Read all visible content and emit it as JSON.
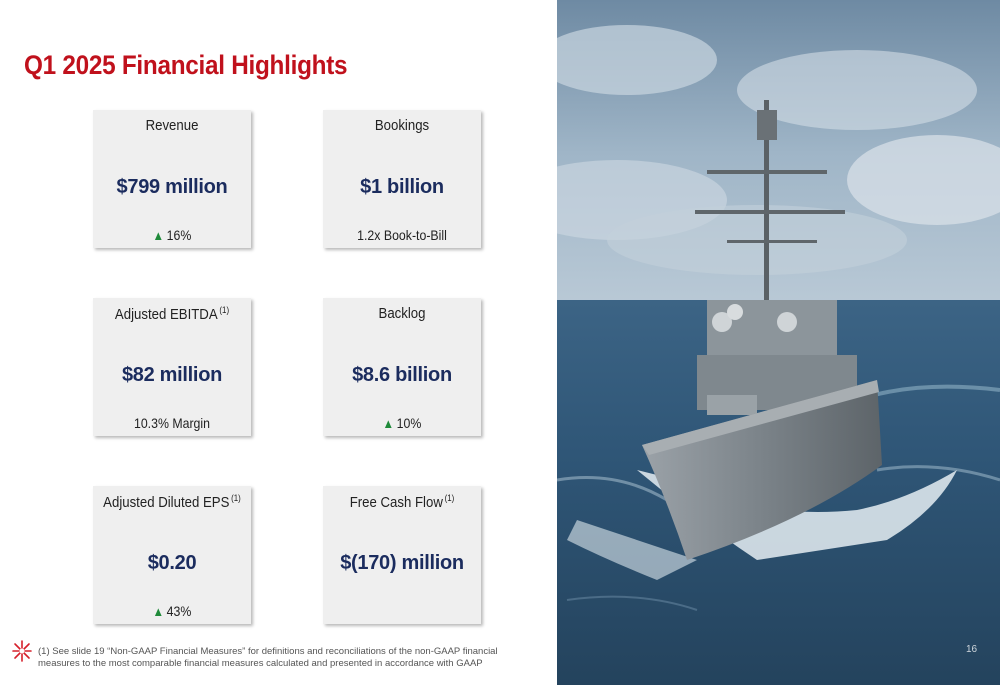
{
  "title": "Q1 2025 Financial Highlights",
  "cards": {
    "revenue": {
      "label": "Revenue",
      "value": "$799 million",
      "sub": "16%",
      "trend": "up"
    },
    "bookings": {
      "label": "Bookings",
      "value": "$1 billion",
      "sub": "1.2x Book-to-Bill"
    },
    "ebitda": {
      "label": "Adjusted EBITDA",
      "note": "(1)",
      "value": "$82 million",
      "sub": "10.3% Margin"
    },
    "backlog": {
      "label": "Backlog",
      "value": "$8.6 billion",
      "sub": "10%",
      "trend": "up"
    },
    "eps": {
      "label": "Adjusted Diluted EPS",
      "note": "(1)",
      "value": "$0.20",
      "sub": "43%",
      "trend": "up"
    },
    "fcf": {
      "label": "Free Cash Flow",
      "note": "(1)",
      "value": "$(170) million"
    }
  },
  "footnote": "(1) See slide 19 “Non-GAAP Financial Measures” for definitions and reconciliations of the non-GAAP financial measures to the most comparable financial measures calculated and presented in accordance with GAAP",
  "page_number": "16",
  "colors": {
    "title": "#c0111c",
    "value": "#1b2c5e",
    "trend_up": "#1f8a3a",
    "card_bg": "#efefef"
  },
  "icons": {
    "trend": "up-triangle-icon",
    "logo": "starburst-logo-icon"
  }
}
